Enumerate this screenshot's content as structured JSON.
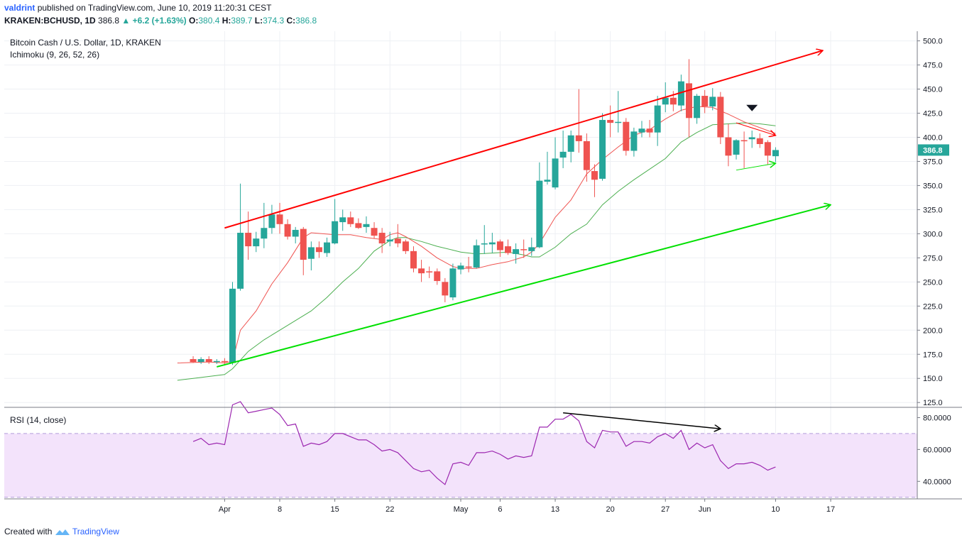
{
  "header": {
    "author": "valdrint",
    "published_text": "published on TradingView.com, June 10, 2019 11:20:31 CEST",
    "symbol": "KRAKEN:BCHUSD, 1D",
    "last": "386.8",
    "change": "▲ +6.2 (+1.63%)",
    "open_label": "O:",
    "open": "380.4",
    "high_label": "H:",
    "high": "389.7",
    "low_label": "L:",
    "low": "374.3",
    "close_label": "C:",
    "close": "386.8"
  },
  "footer": {
    "created_with": "Created with",
    "brand": "TradingView"
  },
  "colors": {
    "up": "#26a69a",
    "down": "#ef5350",
    "tenkan": "#ef5350",
    "kijun": "#4caf50",
    "trend_upper": "#ff0000",
    "trend_lower": "#00e000",
    "rsi_line": "#9c27b0",
    "rsi_band": "#f3e3fb"
  },
  "chart_data": [
    {
      "type": "candlestick",
      "title": "Bitcoin Cash / U.S. Dollar, 1D, KRAKEN",
      "indicator": "Ichimoku (9, 26, 52, 26)",
      "last_price_label": "386.8",
      "ylim": [
        120,
        510
      ],
      "yticks": [
        "125.0",
        "150.0",
        "175.0",
        "200.0",
        "225.0",
        "250.0",
        "275.0",
        "300.0",
        "325.0",
        "350.0",
        "375.0",
        "400.0",
        "425.0",
        "450.0",
        "475.0",
        "500.0"
      ],
      "xlim": [
        -28,
        88
      ],
      "xticks": [
        {
          "label": "Apr",
          "t": 0
        },
        {
          "label": "8",
          "t": 7
        },
        {
          "label": "15",
          "t": 14
        },
        {
          "label": "22",
          "t": 21
        },
        {
          "label": "May",
          "t": 30
        },
        {
          "label": "6",
          "t": 35
        },
        {
          "label": "13",
          "t": 42
        },
        {
          "label": "20",
          "t": 49
        },
        {
          "label": "27",
          "t": 56
        },
        {
          "label": "Jun",
          "t": 61
        },
        {
          "label": "10",
          "t": 70
        },
        {
          "label": "17",
          "t": 77
        }
      ],
      "candles": [
        {
          "t": -4,
          "o": 170,
          "h": 173,
          "l": 166,
          "c": 167
        },
        {
          "t": -3,
          "o": 167,
          "h": 172,
          "l": 165,
          "c": 170
        },
        {
          "t": -2,
          "o": 170,
          "h": 173,
          "l": 165,
          "c": 167
        },
        {
          "t": -1,
          "o": 167,
          "h": 170,
          "l": 165,
          "c": 168
        },
        {
          "t": 0,
          "o": 168,
          "h": 171,
          "l": 165,
          "c": 167
        },
        {
          "t": 1,
          "o": 166,
          "h": 250,
          "l": 164,
          "c": 243
        },
        {
          "t": 2,
          "o": 243,
          "h": 352,
          "l": 241,
          "c": 301
        },
        {
          "t": 3,
          "o": 301,
          "h": 323,
          "l": 273,
          "c": 287
        },
        {
          "t": 4,
          "o": 287,
          "h": 302,
          "l": 281,
          "c": 295
        },
        {
          "t": 5,
          "o": 295,
          "h": 332,
          "l": 285,
          "c": 306
        },
        {
          "t": 6,
          "o": 306,
          "h": 330,
          "l": 300,
          "c": 320
        },
        {
          "t": 7,
          "o": 320,
          "h": 332,
          "l": 300,
          "c": 310
        },
        {
          "t": 8,
          "o": 310,
          "h": 315,
          "l": 294,
          "c": 297
        },
        {
          "t": 9,
          "o": 297,
          "h": 307,
          "l": 290,
          "c": 304
        },
        {
          "t": 10,
          "o": 305,
          "h": 307,
          "l": 257,
          "c": 273
        },
        {
          "t": 11,
          "o": 274,
          "h": 292,
          "l": 262,
          "c": 286
        },
        {
          "t": 12,
          "o": 286,
          "h": 292,
          "l": 275,
          "c": 281
        },
        {
          "t": 13,
          "o": 280,
          "h": 296,
          "l": 276,
          "c": 291
        },
        {
          "t": 14,
          "o": 290,
          "h": 336,
          "l": 289,
          "c": 313
        },
        {
          "t": 15,
          "o": 312,
          "h": 325,
          "l": 303,
          "c": 317
        },
        {
          "t": 16,
          "o": 317,
          "h": 323,
          "l": 307,
          "c": 310
        },
        {
          "t": 17,
          "o": 311,
          "h": 316,
          "l": 305,
          "c": 306
        },
        {
          "t": 18,
          "o": 307,
          "h": 318,
          "l": 301,
          "c": 310
        },
        {
          "t": 19,
          "o": 306,
          "h": 312,
          "l": 295,
          "c": 298
        },
        {
          "t": 20,
          "o": 301,
          "h": 306,
          "l": 280,
          "c": 290
        },
        {
          "t": 21,
          "o": 292,
          "h": 302,
          "l": 287,
          "c": 294
        },
        {
          "t": 22,
          "o": 295,
          "h": 310,
          "l": 286,
          "c": 290
        },
        {
          "t": 23,
          "o": 292,
          "h": 294,
          "l": 279,
          "c": 282
        },
        {
          "t": 24,
          "o": 282,
          "h": 287,
          "l": 260,
          "c": 264
        },
        {
          "t": 25,
          "o": 264,
          "h": 273,
          "l": 250,
          "c": 259
        },
        {
          "t": 26,
          "o": 261,
          "h": 266,
          "l": 254,
          "c": 260
        },
        {
          "t": 27,
          "o": 261,
          "h": 264,
          "l": 247,
          "c": 251
        },
        {
          "t": 28,
          "o": 250,
          "h": 254,
          "l": 229,
          "c": 236
        },
        {
          "t": 29,
          "o": 234,
          "h": 269,
          "l": 231,
          "c": 264
        },
        {
          "t": 30,
          "o": 263,
          "h": 270,
          "l": 258,
          "c": 267
        },
        {
          "t": 31,
          "o": 266,
          "h": 276,
          "l": 260,
          "c": 265
        },
        {
          "t": 32,
          "o": 265,
          "h": 294,
          "l": 264,
          "c": 288
        },
        {
          "t": 33,
          "o": 289,
          "h": 309,
          "l": 279,
          "c": 290
        },
        {
          "t": 34,
          "o": 289,
          "h": 301,
          "l": 280,
          "c": 291
        },
        {
          "t": 35,
          "o": 292,
          "h": 294,
          "l": 276,
          "c": 283
        },
        {
          "t": 36,
          "o": 287,
          "h": 294,
          "l": 278,
          "c": 280
        },
        {
          "t": 37,
          "o": 279,
          "h": 290,
          "l": 269,
          "c": 284
        },
        {
          "t": 38,
          "o": 284,
          "h": 294,
          "l": 275,
          "c": 283
        },
        {
          "t": 39,
          "o": 282,
          "h": 296,
          "l": 277,
          "c": 286
        },
        {
          "t": 40,
          "o": 286,
          "h": 374,
          "l": 285,
          "c": 355
        },
        {
          "t": 41,
          "o": 354,
          "h": 385,
          "l": 351,
          "c": 356
        },
        {
          "t": 42,
          "o": 348,
          "h": 400,
          "l": 346,
          "c": 378
        },
        {
          "t": 43,
          "o": 379,
          "h": 407,
          "l": 368,
          "c": 385
        },
        {
          "t": 44,
          "o": 385,
          "h": 407,
          "l": 374,
          "c": 402
        },
        {
          "t": 45,
          "o": 402,
          "h": 450,
          "l": 384,
          "c": 396
        },
        {
          "t": 46,
          "o": 396,
          "h": 404,
          "l": 354,
          "c": 366
        },
        {
          "t": 47,
          "o": 365,
          "h": 372,
          "l": 338,
          "c": 356
        },
        {
          "t": 48,
          "o": 357,
          "h": 425,
          "l": 355,
          "c": 418
        },
        {
          "t": 49,
          "o": 418,
          "h": 433,
          "l": 400,
          "c": 415
        },
        {
          "t": 50,
          "o": 415,
          "h": 448,
          "l": 405,
          "c": 416
        },
        {
          "t": 51,
          "o": 416,
          "h": 420,
          "l": 381,
          "c": 386
        },
        {
          "t": 52,
          "o": 386,
          "h": 410,
          "l": 380,
          "c": 406
        },
        {
          "t": 53,
          "o": 405,
          "h": 417,
          "l": 400,
          "c": 409
        },
        {
          "t": 54,
          "o": 409,
          "h": 418,
          "l": 400,
          "c": 405
        },
        {
          "t": 55,
          "o": 405,
          "h": 443,
          "l": 391,
          "c": 433
        },
        {
          "t": 56,
          "o": 434,
          "h": 457,
          "l": 426,
          "c": 441
        },
        {
          "t": 57,
          "o": 441,
          "h": 448,
          "l": 427,
          "c": 434
        },
        {
          "t": 58,
          "o": 433,
          "h": 465,
          "l": 427,
          "c": 458
        },
        {
          "t": 59,
          "o": 456,
          "h": 481,
          "l": 400,
          "c": 420
        },
        {
          "t": 60,
          "o": 420,
          "h": 445,
          "l": 414,
          "c": 443
        },
        {
          "t": 61,
          "o": 443,
          "h": 449,
          "l": 425,
          "c": 432
        },
        {
          "t": 62,
          "o": 432,
          "h": 451,
          "l": 428,
          "c": 442
        },
        {
          "t": 63,
          "o": 442,
          "h": 447,
          "l": 393,
          "c": 400
        },
        {
          "t": 64,
          "o": 400,
          "h": 414,
          "l": 370,
          "c": 381
        },
        {
          "t": 65,
          "o": 382,
          "h": 398,
          "l": 377,
          "c": 397
        },
        {
          "t": 66,
          "o": 397,
          "h": 406,
          "l": 368,
          "c": 396
        },
        {
          "t": 67,
          "o": 398,
          "h": 407,
          "l": 389,
          "c": 400
        },
        {
          "t": 68,
          "o": 399,
          "h": 404,
          "l": 389,
          "c": 393
        },
        {
          "t": 69,
          "o": 395,
          "h": 397,
          "l": 372,
          "c": 381
        },
        {
          "t": 70,
          "o": 380.4,
          "h": 389.7,
          "l": 374.3,
          "c": 386.8
        }
      ],
      "tenkan": [
        [
          -6,
          166
        ],
        [
          -2,
          167
        ],
        [
          0,
          166
        ],
        [
          1,
          168
        ],
        [
          2,
          200
        ],
        [
          4,
          220
        ],
        [
          6,
          248
        ],
        [
          8,
          270
        ],
        [
          10,
          296
        ],
        [
          11,
          301
        ],
        [
          14,
          299
        ],
        [
          16,
          299
        ],
        [
          18,
          296
        ],
        [
          20,
          294
        ],
        [
          21,
          299
        ],
        [
          22,
          301
        ],
        [
          23,
          297
        ],
        [
          25,
          287
        ],
        [
          27,
          275
        ],
        [
          29,
          266
        ],
        [
          30,
          264
        ],
        [
          32,
          264
        ],
        [
          34,
          268
        ],
        [
          36,
          271
        ],
        [
          38,
          276
        ],
        [
          39,
          281
        ],
        [
          40,
          290
        ],
        [
          42,
          317
        ],
        [
          44,
          335
        ],
        [
          46,
          362
        ],
        [
          48,
          377
        ],
        [
          50,
          390
        ],
        [
          52,
          402
        ],
        [
          54,
          408
        ],
        [
          56,
          419
        ],
        [
          58,
          428
        ],
        [
          60,
          432
        ],
        [
          62,
          431
        ],
        [
          64,
          424
        ],
        [
          66,
          416
        ],
        [
          68,
          410
        ],
        [
          70,
          404
        ]
      ],
      "kijun": [
        [
          -6,
          148
        ],
        [
          -4,
          150
        ],
        [
          -2,
          152
        ],
        [
          0,
          154
        ],
        [
          1,
          160
        ],
        [
          3,
          178
        ],
        [
          5,
          190
        ],
        [
          7,
          200
        ],
        [
          9,
          210
        ],
        [
          11,
          220
        ],
        [
          13,
          234
        ],
        [
          15,
          250
        ],
        [
          17,
          264
        ],
        [
          19,
          282
        ],
        [
          21,
          293
        ],
        [
          22,
          296
        ],
        [
          23,
          296
        ],
        [
          25,
          292
        ],
        [
          27,
          287
        ],
        [
          29,
          283
        ],
        [
          30,
          281
        ],
        [
          32,
          279
        ],
        [
          34,
          280
        ],
        [
          36,
          281
        ],
        [
          38,
          278
        ],
        [
          39,
          276
        ],
        [
          40,
          276
        ],
        [
          42,
          286
        ],
        [
          44,
          300
        ],
        [
          46,
          310
        ],
        [
          48,
          330
        ],
        [
          50,
          344
        ],
        [
          52,
          356
        ],
        [
          54,
          367
        ],
        [
          56,
          378
        ],
        [
          58,
          395
        ],
        [
          60,
          405
        ],
        [
          62,
          413
        ],
        [
          64,
          414
        ],
        [
          66,
          415
        ],
        [
          68,
          414
        ],
        [
          70,
          412
        ]
      ],
      "trendlines": [
        {
          "name": "upper",
          "from": [
            0,
            306
          ],
          "to": [
            76,
            490
          ]
        },
        {
          "name": "lower",
          "from": [
            -1,
            162
          ],
          "to": [
            77,
            330
          ]
        },
        {
          "name": "short-upper",
          "from": [
            65,
            415
          ],
          "to": [
            70,
            402
          ]
        },
        {
          "name": "short-lower",
          "from": [
            65,
            366
          ],
          "to": [
            70,
            373
          ]
        }
      ],
      "marker": {
        "shape": "down-triangle",
        "t": 67,
        "value": 430
      }
    },
    {
      "type": "line",
      "title": "RSI (14, close)",
      "ylim": [
        29,
        86
      ],
      "yticks": [
        "40.0000",
        "60.0000",
        "80.0000"
      ],
      "bands": [
        30,
        70
      ],
      "x": [
        -4,
        -3,
        -2,
        -1,
        0,
        1,
        2,
        3,
        4,
        5,
        6,
        7,
        8,
        9,
        10,
        11,
        12,
        13,
        14,
        15,
        16,
        17,
        18,
        19,
        20,
        21,
        22,
        23,
        24,
        25,
        26,
        27,
        28,
        29,
        30,
        31,
        32,
        33,
        34,
        35,
        36,
        37,
        38,
        39,
        40,
        41,
        42,
        43,
        44,
        45,
        46,
        47,
        48,
        49,
        50,
        51,
        52,
        53,
        54,
        55,
        56,
        57,
        58,
        59,
        60,
        61,
        62,
        63,
        64,
        65,
        66,
        67,
        68,
        69,
        70
      ],
      "values": [
        65,
        67,
        63,
        64,
        63,
        88,
        90,
        83,
        84,
        85,
        86,
        82,
        75,
        76,
        62,
        64,
        63,
        65,
        70,
        70,
        68,
        66,
        66,
        63,
        59,
        60,
        58,
        53,
        48,
        46,
        47,
        42,
        38,
        51,
        52,
        50,
        58,
        58,
        59,
        57,
        54,
        56,
        55,
        56,
        74,
        74,
        79,
        79,
        82,
        78,
        65,
        61,
        72,
        71,
        71,
        62,
        65,
        65,
        64,
        68,
        70,
        67,
        72,
        60,
        64,
        61,
        63,
        53,
        48,
        51,
        51,
        52,
        50,
        47,
        49
      ],
      "annotation": {
        "type": "arrow",
        "from": [
          43,
          83
        ],
        "to": [
          63,
          73
        ]
      }
    }
  ]
}
